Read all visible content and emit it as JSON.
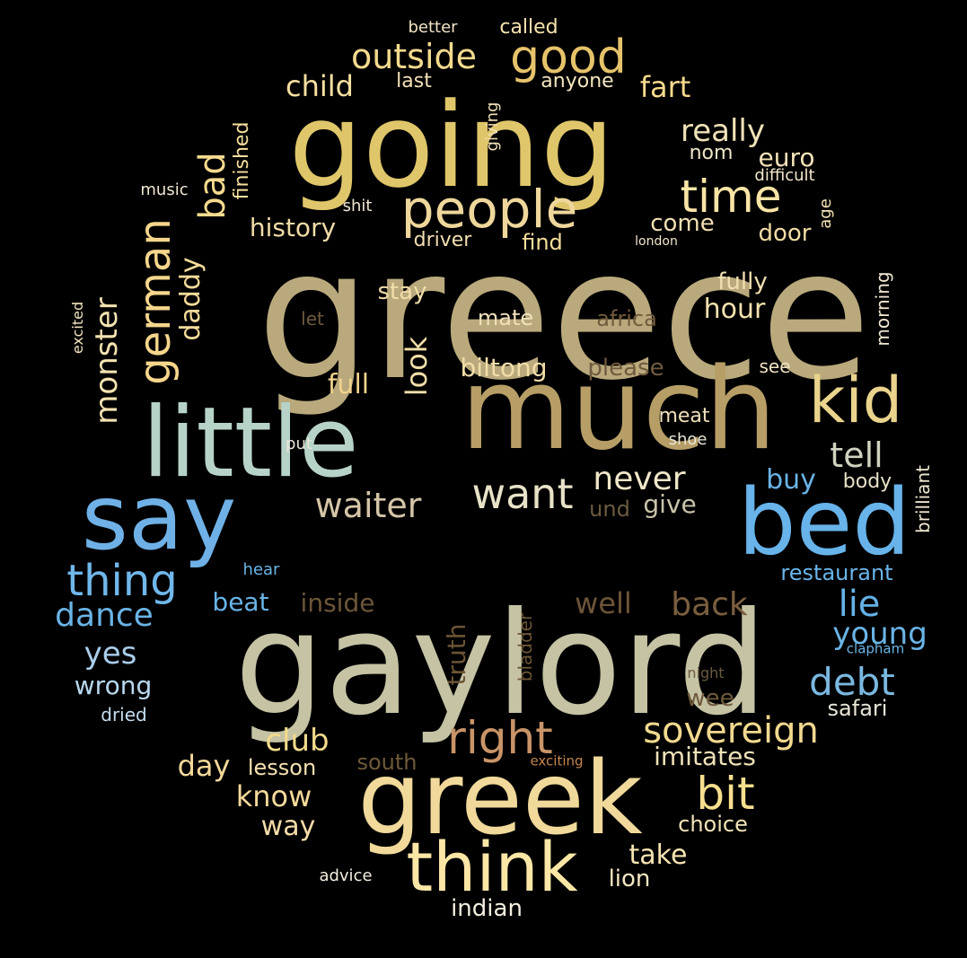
{
  "cloud": {
    "background": "#000000",
    "words": [
      {
        "text": "greece",
        "color": "#b9a97c"
      },
      {
        "text": "gaylord",
        "color": "#c5c3a4"
      },
      {
        "text": "going",
        "color": "#dfc66a"
      },
      {
        "text": "much",
        "color": "#b69e66"
      },
      {
        "text": "little",
        "color": "#b7d3c8"
      },
      {
        "text": "greek",
        "color": "#f0d99a"
      },
      {
        "text": "say",
        "color": "#6fb1e6"
      },
      {
        "text": "bed",
        "color": "#67b3ea"
      },
      {
        "text": "think",
        "color": "#fbe6a6"
      },
      {
        "text": "kid",
        "color": "#ead38c"
      },
      {
        "text": "people",
        "color": "#efd79c"
      },
      {
        "text": "good",
        "color": "#e6c36b"
      },
      {
        "text": "time",
        "color": "#fbe5a6"
      },
      {
        "text": "want",
        "color": "#e8e3c8"
      },
      {
        "text": "right",
        "color": "#c99468"
      },
      {
        "text": "german",
        "color": "#f5d68c"
      },
      {
        "text": "thing",
        "color": "#70b7ea"
      },
      {
        "text": "bit",
        "color": "#f7df8e"
      },
      {
        "text": "sovereign",
        "color": "#f2d98f"
      },
      {
        "text": "outside",
        "color": "#f4da8e"
      },
      {
        "text": "waiter",
        "color": "#d5c5a8"
      },
      {
        "text": "debt",
        "color": "#7ab8e0"
      },
      {
        "text": "monster",
        "color": "#f4e3b1"
      },
      {
        "text": "tell",
        "color": "#cfd3bf"
      },
      {
        "text": "never",
        "color": "#efe7c8"
      },
      {
        "text": "bad",
        "color": "#f7da8e"
      },
      {
        "text": "lie",
        "color": "#64b2e8"
      },
      {
        "text": "back",
        "color": "#7a5f3f"
      },
      {
        "text": "dance",
        "color": "#6ab4e6"
      },
      {
        "text": "club",
        "color": "#f2da8b"
      },
      {
        "text": "young",
        "color": "#6ab4e6"
      },
      {
        "text": "really",
        "color": "#efe2b8"
      },
      {
        "text": "fart",
        "color": "#f8db8c"
      },
      {
        "text": "child",
        "color": "#f8e0a0"
      },
      {
        "text": "look",
        "color": "#f0dfa8"
      },
      {
        "text": "well",
        "color": "#6e5538"
      },
      {
        "text": "know",
        "color": "#f4d99a"
      },
      {
        "text": "day",
        "color": "#f4d99a"
      },
      {
        "text": "daddy",
        "color": "#f7dc9a"
      },
      {
        "text": "history",
        "color": "#f0dca8"
      },
      {
        "text": "hour",
        "color": "#f3e2b0"
      },
      {
        "text": "full",
        "color": "#f0d38c"
      },
      {
        "text": "yes",
        "color": "#a9cdea"
      },
      {
        "text": "biltong",
        "color": "#f1dda8"
      },
      {
        "text": "imitates",
        "color": "#efe2b8"
      },
      {
        "text": "take",
        "color": "#f7e4b0"
      },
      {
        "text": "way",
        "color": "#f4dcaa"
      },
      {
        "text": "give",
        "color": "#c9c3aa"
      },
      {
        "text": "wrong",
        "color": "#b8d8ef"
      },
      {
        "text": "inside",
        "color": "#6c5639"
      },
      {
        "text": "beat",
        "color": "#6ab4e6"
      },
      {
        "text": "buy",
        "color": "#6ab4e6"
      },
      {
        "text": "truth",
        "color": "#6b5535"
      },
      {
        "text": "please",
        "color": "#6f5a3e"
      },
      {
        "text": "euro",
        "color": "#f4e3b8"
      },
      {
        "text": "stay",
        "color": "#f1dda8"
      },
      {
        "text": "fully",
        "color": "#f0dfb0"
      },
      {
        "text": "door",
        "color": "#f2dca4"
      },
      {
        "text": "come",
        "color": "#f2e0b4"
      },
      {
        "text": "choice",
        "color": "#f1e3b8"
      },
      {
        "text": "lion",
        "color": "#f4e6c0"
      },
      {
        "text": "indian",
        "color": "#f4efe0"
      },
      {
        "text": "restaurant",
        "color": "#69b5ea"
      },
      {
        "text": "safari",
        "color": "#e9e6d8"
      },
      {
        "text": "wee",
        "color": "#6e5a3a"
      },
      {
        "text": "lesson",
        "color": "#f5e0b0"
      },
      {
        "text": "south",
        "color": "#6e5a3a"
      },
      {
        "text": "mate",
        "color": "#f0e1bc"
      },
      {
        "text": "africa",
        "color": "#735b3d"
      },
      {
        "text": "driver",
        "color": "#f2deb0"
      },
      {
        "text": "find",
        "color": "#f6df9c"
      },
      {
        "text": "body",
        "color": "#e8e0c8"
      },
      {
        "text": "meat",
        "color": "#f1e0bc"
      },
      {
        "text": "nom",
        "color": "#f0e6c8"
      },
      {
        "text": "last",
        "color": "#f3e0b8"
      },
      {
        "text": "anyone",
        "color": "#f5e6c0"
      },
      {
        "text": "called",
        "color": "#f6e3b0"
      },
      {
        "text": "finished",
        "color": "#f6de9e"
      },
      {
        "text": "und",
        "color": "#6a5a40"
      },
      {
        "text": "see",
        "color": "#f0e3c4"
      },
      {
        "text": "morning",
        "color": "#f1e8d2"
      },
      {
        "text": "brilliant",
        "color": "#f1e8d2"
      },
      {
        "text": "bladder",
        "color": "#6b5535"
      },
      {
        "text": "let",
        "color": "#6f5a3e"
      },
      {
        "text": "giving",
        "color": "#f2e0b8"
      },
      {
        "text": "better",
        "color": "#f2e4c4"
      },
      {
        "text": "age",
        "color": "#f5e2b4"
      },
      {
        "text": "dried",
        "color": "#c4dcef"
      },
      {
        "text": "difficult",
        "color": "#f4e7cc"
      },
      {
        "text": "shit",
        "color": "#f0e6d2"
      },
      {
        "text": "music",
        "color": "#f0e6d2"
      },
      {
        "text": "put",
        "color": "#eae6d8"
      },
      {
        "text": "shoe",
        "color": "#eae6d8"
      },
      {
        "text": "advice",
        "color": "#f4ede0"
      },
      {
        "text": "hear",
        "color": "#6ab4e6"
      },
      {
        "text": "excited",
        "color": "#f5e6c0"
      },
      {
        "text": "night",
        "color": "#6b5a40"
      },
      {
        "text": "exciting",
        "color": "#c4854e"
      },
      {
        "text": "clapham",
        "color": "#6ab4e6"
      },
      {
        "text": "london",
        "color": "#f2e6cc"
      }
    ]
  }
}
